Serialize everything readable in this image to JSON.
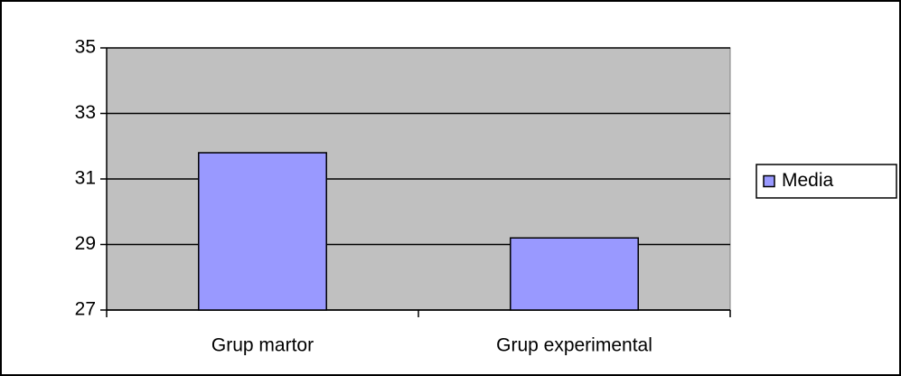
{
  "chart_data": {
    "type": "bar",
    "categories": [
      "Grup martor",
      "Grup experimental"
    ],
    "series": [
      {
        "name": "Media",
        "color": "#9999ff",
        "values": [
          31.8,
          29.2
        ]
      }
    ],
    "ylim": [
      27,
      35
    ],
    "yticks": [
      27,
      29,
      31,
      33,
      35
    ],
    "grid": true,
    "legend": "right",
    "plot_background": "#c0c0c0"
  }
}
